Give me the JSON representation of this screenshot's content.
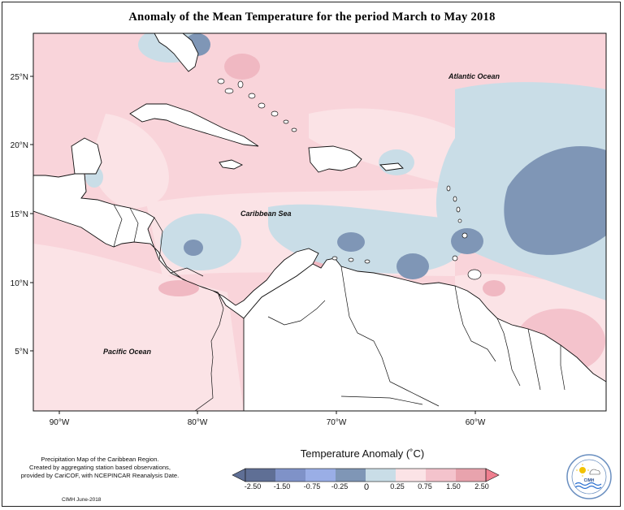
{
  "title": "Anomaly of the Mean Temperature for the period March to May 2018",
  "map": {
    "lon_ticks": [
      "90°W",
      "80°W",
      "70°W",
      "60°W"
    ],
    "lat_ticks": [
      "25°N",
      "20°N",
      "15°N",
      "10°N",
      "5°N"
    ],
    "labels": {
      "atlantic": "Atlantic Ocean",
      "caribbean": "Caribbean Sea",
      "pacific": "Pacific Ocean"
    }
  },
  "legend": {
    "title": "Temperature Anomaly (˚C)",
    "ticks": [
      "-2.50",
      "-1.50",
      "-0.75",
      "-0.25",
      "0",
      "0.25",
      "0.75",
      "1.50",
      "2.50"
    ],
    "colors": [
      "#5f6f95",
      "#7f92c8",
      "#9aaee6",
      "#7f96b6",
      "#c9dde7",
      "#fbe3e6",
      "#f4c3cc",
      "#e8a3ad",
      "#ef7f8f"
    ]
  },
  "notes": {
    "line1": "Precipitation Map of the Caribbean Region.",
    "line2": "Created by aggregating station based observations,",
    "line3": "provided by CariCOF, with NCEPINCAR Reanalysis Date."
  },
  "credit": "CIMH June-2018",
  "logo_text": "CIMH"
}
